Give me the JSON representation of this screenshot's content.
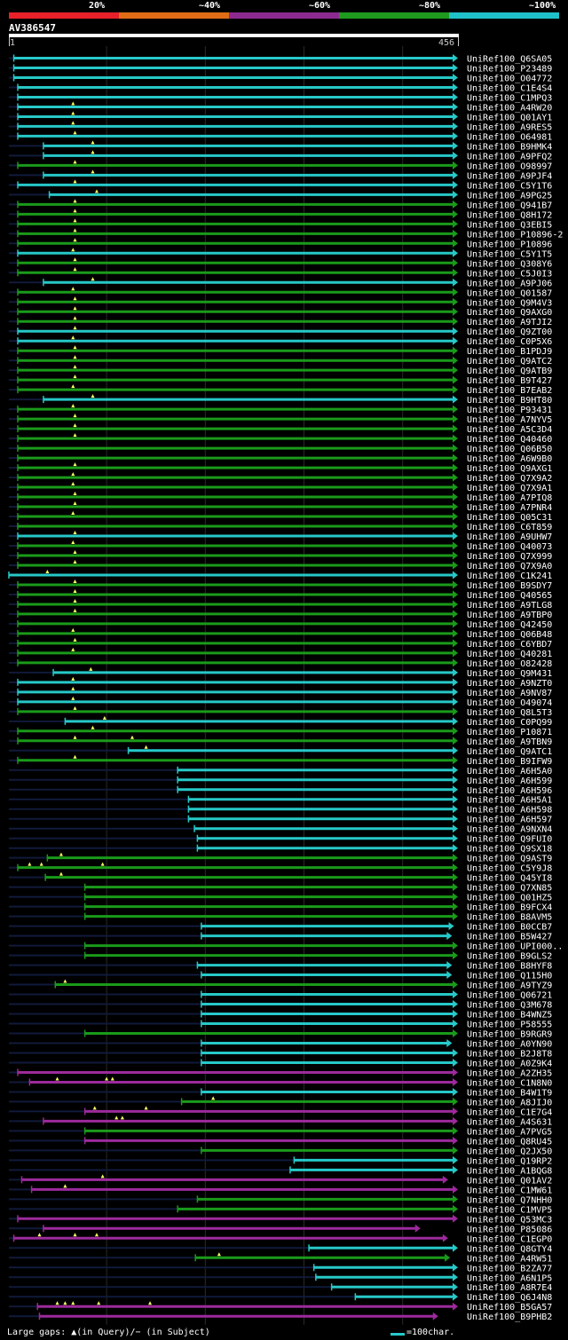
{
  "chart_data": {
    "type": "alignment-overview",
    "title": "AV386547",
    "query_range": [
      1,
      456
    ],
    "query_start_label": "1",
    "query_end_label": "456",
    "grid_positions": [
      100,
      200,
      300,
      400
    ],
    "legend": [
      {
        "label": "20%",
        "color": "#e8202a"
      },
      {
        "label": "~40%",
        "color": "#e06c16"
      },
      {
        "label": "~60%",
        "color": "#8c2a90"
      },
      {
        "label": "~80%",
        "color": "#1e9a1e"
      },
      {
        "label": "~100%",
        "color": "#20c0c8"
      }
    ],
    "colors": {
      "c": "#27c8c8",
      "g": "#1a9a1a",
      "m": "#9c2a9c",
      "dim": "#101a3a",
      "tri": "#ffff66"
    },
    "hits": [
      {
        "id": "UniRef100_Q6SA05",
        "s": 6,
        "e": 456,
        "c": "c"
      },
      {
        "id": "UniRef100_P23489",
        "s": 6,
        "e": 456,
        "c": "c"
      },
      {
        "id": "UniRef100_O04772",
        "s": 6,
        "e": 456,
        "c": "c"
      },
      {
        "id": "UniRef100_C1E4S4",
        "s": 10,
        "e": 456,
        "c": "c"
      },
      {
        "id": "UniRef100_C1MPQ3",
        "s": 10,
        "e": 456,
        "c": "c"
      },
      {
        "id": "UniRef100_A4RW20",
        "s": 10,
        "e": 456,
        "c": "c",
        "t": [
          66
        ]
      },
      {
        "id": "UniRef100_Q01AY1",
        "s": 10,
        "e": 456,
        "c": "c",
        "t": [
          66
        ]
      },
      {
        "id": "UniRef100_A9RES5",
        "s": 10,
        "e": 456,
        "c": "c",
        "t": [
          66
        ]
      },
      {
        "id": "UniRef100_O64981",
        "s": 10,
        "e": 456,
        "c": "c",
        "t": [
          68
        ]
      },
      {
        "id": "UniRef100_B9HMK4",
        "s": 36,
        "e": 456,
        "c": "c",
        "t": [
          86
        ]
      },
      {
        "id": "UniRef100_A9PFQ2",
        "s": 36,
        "e": 456,
        "c": "c",
        "t": [
          86
        ]
      },
      {
        "id": "UniRef100_O98997",
        "s": 10,
        "e": 456,
        "c": "g",
        "t": [
          68
        ]
      },
      {
        "id": "UniRef100_A9PJF4",
        "s": 36,
        "e": 456,
        "c": "c",
        "t": [
          86
        ]
      },
      {
        "id": "UniRef100_C5Y1T6",
        "s": 10,
        "e": 456,
        "c": "c",
        "t": [
          68
        ]
      },
      {
        "id": "UniRef100_A9PG25",
        "s": 42,
        "e": 456,
        "c": "c",
        "t": [
          90
        ]
      },
      {
        "id": "UniRef100_Q941B7",
        "s": 10,
        "e": 456,
        "c": "g",
        "t": [
          68
        ]
      },
      {
        "id": "UniRef100_Q8H172",
        "s": 10,
        "e": 456,
        "c": "g",
        "t": [
          68
        ]
      },
      {
        "id": "UniRef100_Q3EBI5",
        "s": 10,
        "e": 456,
        "c": "g",
        "t": [
          68
        ]
      },
      {
        "id": "UniRef100_P10896-2",
        "s": 10,
        "e": 456,
        "c": "g",
        "t": [
          68
        ]
      },
      {
        "id": "UniRef100_P10896",
        "s": 10,
        "e": 456,
        "c": "g",
        "t": [
          68
        ]
      },
      {
        "id": "UniRef100_C5Y1T5",
        "s": 10,
        "e": 456,
        "c": "c",
        "t": [
          66
        ]
      },
      {
        "id": "UniRef100_Q308Y6",
        "s": 10,
        "e": 456,
        "c": "g",
        "t": [
          68
        ]
      },
      {
        "id": "UniRef100_C5J0I3",
        "s": 10,
        "e": 456,
        "c": "g",
        "t": [
          68
        ]
      },
      {
        "id": "UniRef100_A9PJ06",
        "s": 36,
        "e": 456,
        "c": "c",
        "t": [
          86
        ]
      },
      {
        "id": "UniRef100_Q01587",
        "s": 10,
        "e": 456,
        "c": "g",
        "t": [
          66
        ]
      },
      {
        "id": "UniRef100_Q9M4V3",
        "s": 10,
        "e": 456,
        "c": "g",
        "t": [
          68
        ]
      },
      {
        "id": "UniRef100_Q9AXG0",
        "s": 10,
        "e": 456,
        "c": "g",
        "t": [
          68
        ]
      },
      {
        "id": "UniRef100_A9TJI2",
        "s": 10,
        "e": 456,
        "c": "g",
        "t": [
          68
        ]
      },
      {
        "id": "UniRef100_Q9ZT00",
        "s": 10,
        "e": 456,
        "c": "c",
        "t": [
          68
        ]
      },
      {
        "id": "UniRef100_C0P5X6",
        "s": 10,
        "e": 456,
        "c": "c",
        "t": [
          66
        ]
      },
      {
        "id": "UniRef100_B1PDJ9",
        "s": 10,
        "e": 456,
        "c": "g",
        "t": [
          68
        ]
      },
      {
        "id": "UniRef100_Q9ATC2",
        "s": 10,
        "e": 456,
        "c": "g",
        "t": [
          68
        ]
      },
      {
        "id": "UniRef100_Q9ATB9",
        "s": 10,
        "e": 456,
        "c": "g",
        "t": [
          68
        ]
      },
      {
        "id": "UniRef100_B9T427",
        "s": 10,
        "e": 456,
        "c": "g",
        "t": [
          68
        ]
      },
      {
        "id": "UniRef100_B7EAB2",
        "s": 10,
        "e": 456,
        "c": "g",
        "t": [
          66
        ]
      },
      {
        "id": "UniRef100_B9HT80",
        "s": 36,
        "e": 456,
        "c": "c",
        "t": [
          86
        ]
      },
      {
        "id": "UniRef100_P93431",
        "s": 10,
        "e": 456,
        "c": "g",
        "t": [
          66
        ]
      },
      {
        "id": "UniRef100_A7NYV5",
        "s": 10,
        "e": 456,
        "c": "g",
        "t": [
          68
        ]
      },
      {
        "id": "UniRef100_A5C3D4",
        "s": 10,
        "e": 456,
        "c": "g",
        "t": [
          68
        ]
      },
      {
        "id": "UniRef100_Q40460",
        "s": 10,
        "e": 456,
        "c": "g",
        "t": [
          68
        ]
      },
      {
        "id": "UniRef100_Q06B50",
        "s": 10,
        "e": 456,
        "c": "g"
      },
      {
        "id": "UniRef100_A6W9B0",
        "s": 10,
        "e": 456,
        "c": "g"
      },
      {
        "id": "UniRef100_Q9AXG1",
        "s": 10,
        "e": 456,
        "c": "g",
        "t": [
          68
        ]
      },
      {
        "id": "UniRef100_Q7X9A2",
        "s": 10,
        "e": 456,
        "c": "g",
        "t": [
          66
        ]
      },
      {
        "id": "UniRef100_Q7X9A1",
        "s": 10,
        "e": 456,
        "c": "g",
        "t": [
          66
        ]
      },
      {
        "id": "UniRef100_A7PIQ8",
        "s": 10,
        "e": 456,
        "c": "g",
        "t": [
          68
        ]
      },
      {
        "id": "UniRef100_A7PNR4",
        "s": 10,
        "e": 456,
        "c": "g",
        "t": [
          68
        ]
      },
      {
        "id": "UniRef100_Q05C31",
        "s": 10,
        "e": 456,
        "c": "g",
        "t": [
          66
        ]
      },
      {
        "id": "UniRef100_C6T859",
        "s": 10,
        "e": 456,
        "c": "g"
      },
      {
        "id": "UniRef100_A9UHW7",
        "s": 10,
        "e": 456,
        "c": "c",
        "t": [
          68
        ]
      },
      {
        "id": "UniRef100_Q40073",
        "s": 10,
        "e": 456,
        "c": "g",
        "t": [
          66
        ]
      },
      {
        "id": "UniRef100_Q7X999",
        "s": 10,
        "e": 456,
        "c": "g",
        "t": [
          68
        ]
      },
      {
        "id": "UniRef100_Q7X9A0",
        "s": 10,
        "e": 456,
        "c": "g",
        "t": [
          68
        ]
      },
      {
        "id": "UniRef100_C1K241",
        "s": 1,
        "e": 456,
        "c": "c",
        "t": [
          40
        ]
      },
      {
        "id": "UniRef100_B9SDY7",
        "s": 10,
        "e": 456,
        "c": "g",
        "t": [
          68
        ]
      },
      {
        "id": "UniRef100_Q40565",
        "s": 10,
        "e": 456,
        "c": "g",
        "t": [
          68
        ]
      },
      {
        "id": "UniRef100_A9TLG8",
        "s": 10,
        "e": 456,
        "c": "g",
        "t": [
          68
        ]
      },
      {
        "id": "UniRef100_A9TBP0",
        "s": 10,
        "e": 456,
        "c": "g",
        "t": [
          68
        ]
      },
      {
        "id": "UniRef100_Q42450",
        "s": 10,
        "e": 456,
        "c": "g"
      },
      {
        "id": "UniRef100_Q06B48",
        "s": 10,
        "e": 456,
        "c": "g",
        "t": [
          66
        ]
      },
      {
        "id": "UniRef100_C6YBD7",
        "s": 10,
        "e": 456,
        "c": "g",
        "t": [
          68
        ]
      },
      {
        "id": "UniRef100_Q40281",
        "s": 10,
        "e": 456,
        "c": "g",
        "t": [
          66
        ]
      },
      {
        "id": "UniRef100_O82428",
        "s": 10,
        "e": 456,
        "c": "g"
      },
      {
        "id": "UniRef100_Q9M431",
        "s": 46,
        "e": 456,
        "c": "c",
        "t": [
          84
        ]
      },
      {
        "id": "UniRef100_A9NZT0",
        "s": 10,
        "e": 456,
        "c": "c",
        "t": [
          66
        ]
      },
      {
        "id": "UniRef100_A9NV87",
        "s": 10,
        "e": 456,
        "c": "c",
        "t": [
          66
        ]
      },
      {
        "id": "UniRef100_O49074",
        "s": 10,
        "e": 456,
        "c": "c",
        "t": [
          66
        ]
      },
      {
        "id": "UniRef100_Q8L5T3",
        "s": 10,
        "e": 456,
        "c": "g",
        "t": [
          68
        ]
      },
      {
        "id": "UniRef100_C0PQ99",
        "s": 58,
        "e": 456,
        "c": "c",
        "t": [
          98
        ]
      },
      {
        "id": "UniRef100_P10871",
        "s": 10,
        "e": 456,
        "c": "g",
        "t": [
          86
        ]
      },
      {
        "id": "UniRef100_A9TBN9",
        "s": 10,
        "e": 456,
        "c": "g",
        "t": [
          68,
          126
        ]
      },
      {
        "id": "UniRef100_Q9ATC1",
        "s": 122,
        "e": 456,
        "c": "c",
        "t": [
          140
        ]
      },
      {
        "id": "UniRef100_B9IFW9",
        "s": 10,
        "e": 456,
        "c": "g",
        "t": [
          68
        ]
      },
      {
        "id": "UniRef100_A6H5A0",
        "s": 172,
        "e": 456,
        "c": "c"
      },
      {
        "id": "UniRef100_A6H599",
        "s": 172,
        "e": 456,
        "c": "c"
      },
      {
        "id": "UniRef100_A6H596",
        "s": 172,
        "e": 456,
        "c": "c"
      },
      {
        "id": "UniRef100_A6H5A1",
        "s": 183,
        "e": 456,
        "c": "c"
      },
      {
        "id": "UniRef100_A6H598",
        "s": 183,
        "e": 456,
        "c": "c"
      },
      {
        "id": "UniRef100_A6H597",
        "s": 183,
        "e": 456,
        "c": "c"
      },
      {
        "id": "UniRef100_A9NXN4",
        "s": 189,
        "e": 456,
        "c": "c"
      },
      {
        "id": "UniRef100_Q9FUI0",
        "s": 192,
        "e": 456,
        "c": "c"
      },
      {
        "id": "UniRef100_Q9SX18",
        "s": 192,
        "e": 456,
        "c": "c"
      },
      {
        "id": "UniRef100_Q9AST9",
        "s": 40,
        "e": 456,
        "c": "g",
        "t": [
          54
        ]
      },
      {
        "id": "UniRef100_C5Y9J8",
        "s": 10,
        "e": 456,
        "c": "g",
        "t": [
          22,
          34,
          96
        ]
      },
      {
        "id": "UniRef100_Q45YI8",
        "s": 38,
        "e": 456,
        "c": "g",
        "t": [
          54
        ]
      },
      {
        "id": "UniRef100_Q7XN85",
        "s": 78,
        "e": 456,
        "c": "g"
      },
      {
        "id": "UniRef100_Q01HZ5",
        "s": 78,
        "e": 456,
        "c": "g"
      },
      {
        "id": "UniRef100_B9FCX4",
        "s": 78,
        "e": 456,
        "c": "g"
      },
      {
        "id": "UniRef100_B8AVM5",
        "s": 78,
        "e": 456,
        "c": "g"
      },
      {
        "id": "UniRef100_B0CCB7",
        "s": 196,
        "e": 452,
        "c": "c"
      },
      {
        "id": "UniRef100_B5W427",
        "s": 196,
        "e": 450,
        "c": "c"
      },
      {
        "id": "UniRef100_UPI000..",
        "s": 78,
        "e": 456,
        "c": "g"
      },
      {
        "id": "UniRef100_B9GLS2",
        "s": 78,
        "e": 456,
        "c": "g"
      },
      {
        "id": "UniRef100_B8HYF8",
        "s": 192,
        "e": 450,
        "c": "c"
      },
      {
        "id": "UniRef100_Q115H0",
        "s": 196,
        "e": 450,
        "c": "c"
      },
      {
        "id": "UniRef100_A9TYZ9",
        "s": 48,
        "e": 456,
        "c": "g",
        "t": [
          58
        ]
      },
      {
        "id": "UniRef100_Q06721",
        "s": 196,
        "e": 456,
        "c": "c"
      },
      {
        "id": "UniRef100_Q3M678",
        "s": 196,
        "e": 456,
        "c": "c"
      },
      {
        "id": "UniRef100_B4WNZ5",
        "s": 196,
        "e": 456,
        "c": "c"
      },
      {
        "id": "UniRef100_P58555",
        "s": 196,
        "e": 456,
        "c": "c"
      },
      {
        "id": "UniRef100_B9RGR9",
        "s": 78,
        "e": 456,
        "c": "g"
      },
      {
        "id": "UniRef100_A0YN90",
        "s": 196,
        "e": 450,
        "c": "c"
      },
      {
        "id": "UniRef100_B2J8T8",
        "s": 196,
        "e": 456,
        "c": "c"
      },
      {
        "id": "UniRef100_A0Z9K4",
        "s": 196,
        "e": 456,
        "c": "c"
      },
      {
        "id": "UniRef100_A2ZH35",
        "s": 10,
        "e": 456,
        "c": "m"
      },
      {
        "id": "UniRef100_C1N8N0",
        "s": 22,
        "e": 456,
        "c": "m",
        "t": [
          50,
          100,
          106
        ]
      },
      {
        "id": "UniRef100_B4W1T9",
        "s": 196,
        "e": 456,
        "c": "c"
      },
      {
        "id": "UniRef100_A8JIJ0",
        "s": 176,
        "e": 456,
        "c": "g",
        "t": [
          208
        ]
      },
      {
        "id": "UniRef100_C1E7G4",
        "s": 78,
        "e": 456,
        "c": "m",
        "t": [
          88,
          140
        ]
      },
      {
        "id": "UniRef100_A4S631",
        "s": 36,
        "e": 456,
        "c": "m",
        "t": [
          110,
          116
        ]
      },
      {
        "id": "UniRef100_A7PVG5",
        "s": 78,
        "e": 456,
        "c": "g"
      },
      {
        "id": "UniRef100_Q8RU45",
        "s": 78,
        "e": 456,
        "c": "m"
      },
      {
        "id": "UniRef100_Q2JX50",
        "s": 196,
        "e": 456,
        "c": "g"
      },
      {
        "id": "UniRef100_Q19RP2",
        "s": 290,
        "e": 456,
        "c": "c"
      },
      {
        "id": "UniRef100_A1BQG8",
        "s": 286,
        "e": 456,
        "c": "c"
      },
      {
        "id": "UniRef100_Q01AV2",
        "s": 14,
        "e": 446,
        "c": "m",
        "t": [
          96
        ]
      },
      {
        "id": "UniRef100_C1MW61",
        "s": 24,
        "e": 456,
        "c": "m",
        "t": [
          58
        ]
      },
      {
        "id": "UniRef100_Q7NHH0",
        "s": 192,
        "e": 456,
        "c": "g"
      },
      {
        "id": "UniRef100_C1MVP5",
        "s": 172,
        "e": 456,
        "c": "g"
      },
      {
        "id": "UniRef100_Q53MC3",
        "s": 10,
        "e": 456,
        "c": "m"
      },
      {
        "id": "UniRef100_P85086",
        "s": 36,
        "e": 418,
        "c": "m"
      },
      {
        "id": "UniRef100_C1EGP0",
        "s": 6,
        "e": 446,
        "c": "m",
        "t": [
          32,
          68,
          90
        ]
      },
      {
        "id": "UniRef100_Q8GTY4",
        "s": 305,
        "e": 456,
        "c": "c"
      },
      {
        "id": "UniRef100_A4RW51",
        "s": 190,
        "e": 448,
        "c": "g",
        "t": [
          214
        ]
      },
      {
        "id": "UniRef100_B2ZA77",
        "s": 310,
        "e": 456,
        "c": "c"
      },
      {
        "id": "UniRef100_A6N1P5",
        "s": 312,
        "e": 456,
        "c": "c"
      },
      {
        "id": "UniRef100_A8R7E4",
        "s": 328,
        "e": 456,
        "c": "c"
      },
      {
        "id": "UniRef100_Q6J4N8",
        "s": 352,
        "e": 456,
        "c": "c"
      },
      {
        "id": "UniRef100_B5GA57",
        "s": 30,
        "e": 456,
        "c": "m",
        "t": [
          50,
          58,
          66,
          92,
          144
        ]
      },
      {
        "id": "UniRef100_B9PHB2",
        "s": 32,
        "e": 436,
        "c": "m"
      }
    ]
  },
  "footer": {
    "large_gaps_label": "Large gaps: ▲(in Query)/− (in Subject)",
    "scale_label": "=100char."
  }
}
